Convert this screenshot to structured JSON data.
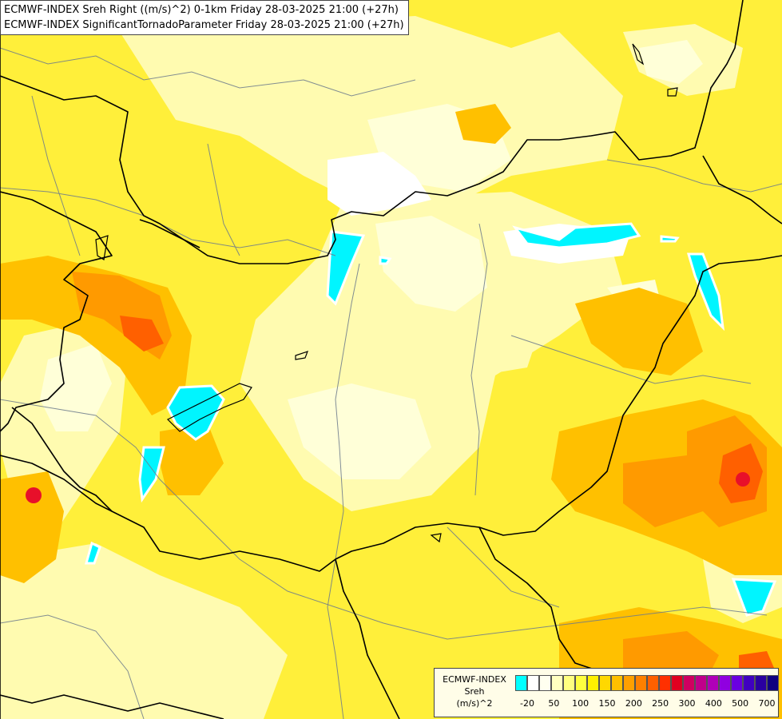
{
  "header": {
    "line1": "ECMWF-INDEX Sreh Right ((m/s)^2) 0-1km Friday 28-03-2025 21:00 (+27h)",
    "line2": "ECMWF-INDEX SignificantTornadoParameter Friday 28-03-2025 21:00 (+27h)"
  },
  "legend": {
    "title_line1": "ECMWF-INDEX",
    "title_line2": "Sreh",
    "title_line3": "(m/s)^2",
    "ticks": [
      "-20",
      "50",
      "100",
      "150",
      "200",
      "250",
      "300",
      "400",
      "500",
      "700"
    ],
    "colors": [
      "#00ffff",
      "#ffffff",
      "#fffff0",
      "#ffffc0",
      "#ffff80",
      "#ffff40",
      "#fff000",
      "#ffd800",
      "#ffc000",
      "#ffa000",
      "#ff8000",
      "#ff6000",
      "#ff3000",
      "#e00020",
      "#d00060",
      "#c0008a",
      "#b000b8",
      "#9000e0",
      "#6a00e0",
      "#4000c0",
      "#2a00a0",
      "#100080"
    ]
  },
  "colors": {
    "base": "#ffef3a",
    "pale": "#ffffc8",
    "orange": "#ffb000",
    "deep_orange": "#ff8000",
    "red": "#ff2a00",
    "cyan": "#00ffff",
    "border": "#000000",
    "river": "#6c7a8c"
  }
}
